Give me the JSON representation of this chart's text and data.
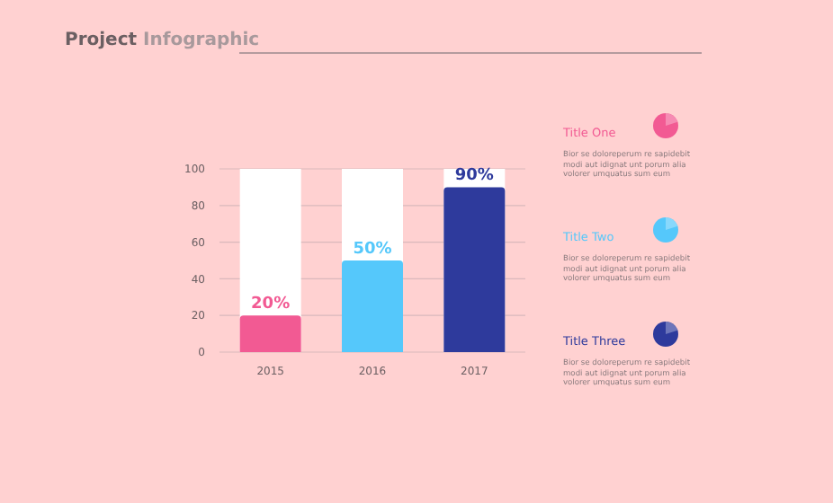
{
  "chart_data": {
    "type": "bar",
    "title": "Project Infographic",
    "categories": [
      "2015",
      "2016",
      "2017"
    ],
    "values": [
      20,
      50,
      90
    ],
    "colors": [
      "#f25a93",
      "#55c8fb",
      "#2e3a9c"
    ],
    "value_labels": [
      "20%",
      "50%",
      "90%"
    ],
    "ylim": [
      0,
      100
    ],
    "yticks": [
      0,
      20,
      40,
      60,
      80,
      100
    ],
    "grid": "y",
    "annotations": [
      "Title One",
      "Bior se doloreperum re sapidebit modi aut idignat unt porum alia volorer umquatus sum eum",
      "Title Two",
      "Bior se doloreperum re sapidebit modi aut idignat unt porum alia volorer umquatus sum eum",
      "Title Three",
      "Bior se doloreperum re sapidebit modi aut idignat unt porum alia volorer umquatus sum eum"
    ]
  }
}
